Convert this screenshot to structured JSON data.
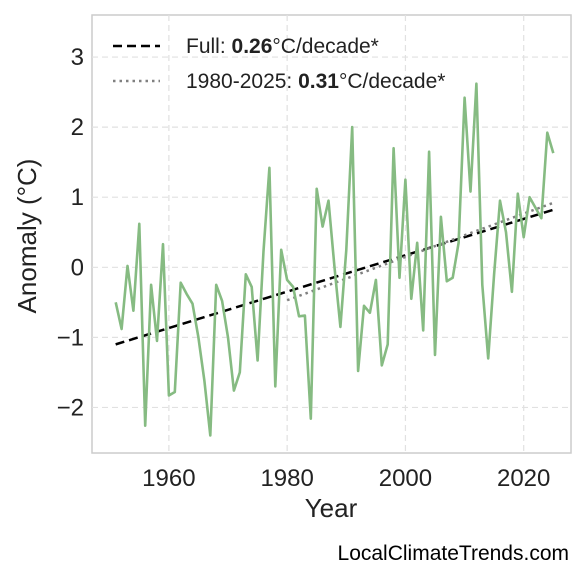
{
  "chart_data": {
    "type": "line",
    "xlabel": "Year",
    "ylabel": "Anomaly (°C)",
    "xlim": [
      1947,
      2028
    ],
    "ylim": [
      -2.65,
      3.6
    ],
    "xticks": [
      1960,
      1980,
      2000,
      2020
    ],
    "yticks": [
      3,
      2,
      1,
      0,
      -1,
      -2
    ],
    "ytick_labels": [
      "3",
      "2",
      "1",
      "0",
      "−1",
      "−2"
    ],
    "grid": true,
    "legend_position": "top-left",
    "series": [
      {
        "color": "#86bb82",
        "x": [
          1951,
          1952,
          1953,
          1954,
          1955,
          1956,
          1957,
          1958,
          1959,
          1960,
          1961,
          1962,
          1963,
          1964,
          1965,
          1966,
          1967,
          1968,
          1969,
          1970,
          1971,
          1972,
          1973,
          1974,
          1975,
          1976,
          1977,
          1978,
          1979,
          1980,
          1981,
          1982,
          1983,
          1984,
          1985,
          1986,
          1987,
          1988,
          1989,
          1990,
          1991,
          1992,
          1993,
          1994,
          1995,
          1996,
          1997,
          1998,
          1999,
          2000,
          2001,
          2002,
          2003,
          2004,
          2005,
          2006,
          2007,
          2008,
          2009,
          2010,
          2011,
          2012,
          2013,
          2014,
          2015,
          2016,
          2017,
          2018,
          2019,
          2020,
          2021,
          2022,
          2023,
          2024,
          2025
        ],
        "y": [
          -0.5,
          -0.88,
          0.02,
          -0.62,
          0.62,
          -2.26,
          -0.25,
          -1.05,
          0.33,
          -1.83,
          -1.78,
          -0.22,
          -0.38,
          -0.52,
          -1.0,
          -1.62,
          -2.4,
          -0.25,
          -0.48,
          -1.0,
          -1.76,
          -1.5,
          -0.1,
          -0.28,
          -1.33,
          0.23,
          1.42,
          -1.7,
          0.25,
          -0.18,
          -0.28,
          -0.7,
          -0.69,
          -2.16,
          1.12,
          0.58,
          0.95,
          0.0,
          -0.85,
          0.25,
          2.0,
          -1.48,
          -0.55,
          -0.65,
          -0.18,
          -1.4,
          -1.1,
          1.7,
          -0.15,
          1.25,
          -0.45,
          0.35,
          -0.9,
          1.65,
          -1.25,
          0.72,
          -0.2,
          -0.15,
          0.35,
          2.42,
          1.08,
          2.62,
          -0.25,
          -1.3,
          -0.1,
          0.95,
          0.5,
          -0.35,
          1.05,
          0.43,
          1.0,
          0.85,
          0.7,
          1.92,
          1.63
        ]
      },
      {
        "name_prefix": "Full: ",
        "name_value": "0.26",
        "name_suffix": "°C/decade*",
        "style": "dashed",
        "color": "#000000",
        "x": [
          1951,
          2025
        ],
        "y": [
          -1.1,
          0.82
        ]
      },
      {
        "name_prefix": "1980-2025: ",
        "name_value": "0.31",
        "name_suffix": "°C/decade*",
        "style": "dotted",
        "color": "#808080",
        "x": [
          1980,
          2025
        ],
        "y": [
          -0.47,
          0.92
        ]
      }
    ]
  },
  "watermark": "LocalClimateTrends.com"
}
